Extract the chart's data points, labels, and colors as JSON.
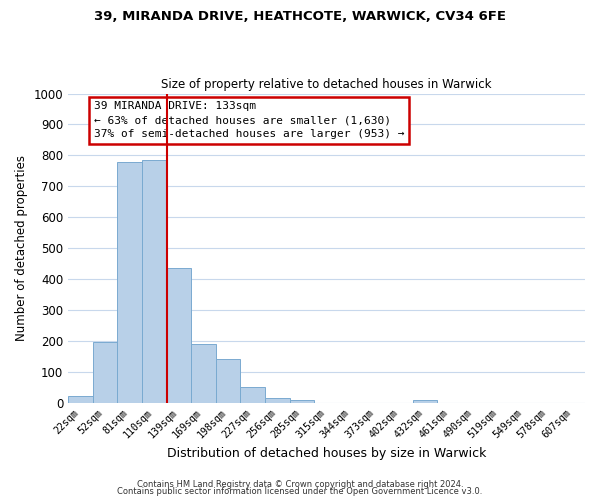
{
  "title1": "39, MIRANDA DRIVE, HEATHCOTE, WARWICK, CV34 6FE",
  "title2": "Size of property relative to detached houses in Warwick",
  "xlabel": "Distribution of detached houses by size in Warwick",
  "ylabel": "Number of detached properties",
  "bar_labels": [
    "22sqm",
    "52sqm",
    "81sqm",
    "110sqm",
    "139sqm",
    "169sqm",
    "198sqm",
    "227sqm",
    "256sqm",
    "285sqm",
    "315sqm",
    "344sqm",
    "373sqm",
    "402sqm",
    "432sqm",
    "461sqm",
    "490sqm",
    "519sqm",
    "549sqm",
    "578sqm",
    "607sqm"
  ],
  "bar_values": [
    20,
    195,
    780,
    785,
    435,
    190,
    140,
    50,
    15,
    10,
    0,
    0,
    0,
    0,
    10,
    0,
    0,
    0,
    0,
    0,
    0
  ],
  "bar_color": "#b8d0e8",
  "bar_edge_color": "#7aaad0",
  "vline_color": "#cc0000",
  "ylim": [
    0,
    1000
  ],
  "yticks": [
    0,
    100,
    200,
    300,
    400,
    500,
    600,
    700,
    800,
    900,
    1000
  ],
  "annotation_title": "39 MIRANDA DRIVE: 133sqm",
  "annotation_line1": "← 63% of detached houses are smaller (1,630)",
  "annotation_line2": "37% of semi-detached houses are larger (953) →",
  "annotation_box_facecolor": "#ffffff",
  "annotation_box_edgecolor": "#cc0000",
  "footer1": "Contains HM Land Registry data © Crown copyright and database right 2024.",
  "footer2": "Contains public sector information licensed under the Open Government Licence v3.0.",
  "background_color": "#ffffff",
  "grid_color": "#c8d8ec"
}
